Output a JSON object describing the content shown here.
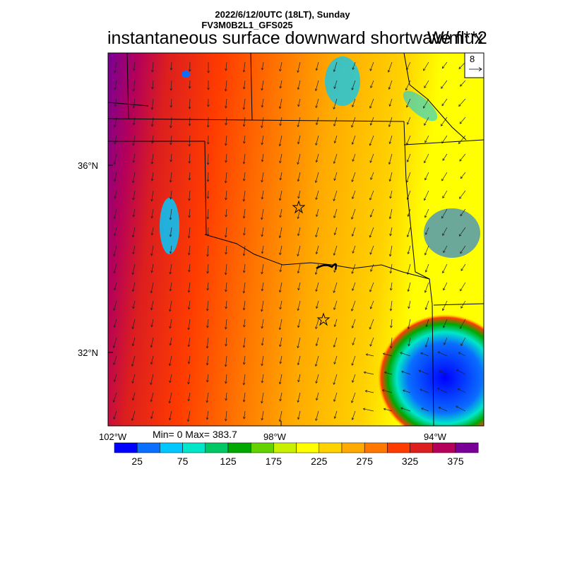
{
  "header": {
    "line1": "2022/6/12/0UTC (18LT), Sunday",
    "line2": "FV3M0B2L1_GFS025",
    "title": "instantaneous surface downward shortwave flux",
    "units": "W/m**2"
  },
  "map": {
    "lat_labels": [
      "36°N",
      "32°N"
    ],
    "lon_labels": [
      "102°W",
      "98°W",
      "94°W"
    ],
    "stations": [
      "star",
      "star"
    ],
    "vector_reference": {
      "value": "8",
      "icon": "arrow-right-icon"
    }
  },
  "stats": {
    "text": "Min= 0 Max= 383.7"
  },
  "colorbar": {
    "colors": [
      "#0000ff",
      "#0a6eff",
      "#00c8ff",
      "#00e6c8",
      "#00c864",
      "#00a800",
      "#64d200",
      "#c8f000",
      "#ffff00",
      "#ffd200",
      "#ffaa00",
      "#ff7800",
      "#ff3c00",
      "#dc1e1e",
      "#b4005a",
      "#780096"
    ],
    "tick_labels": [
      "25",
      "75",
      "125",
      "175",
      "225",
      "275",
      "325",
      "375"
    ]
  }
}
